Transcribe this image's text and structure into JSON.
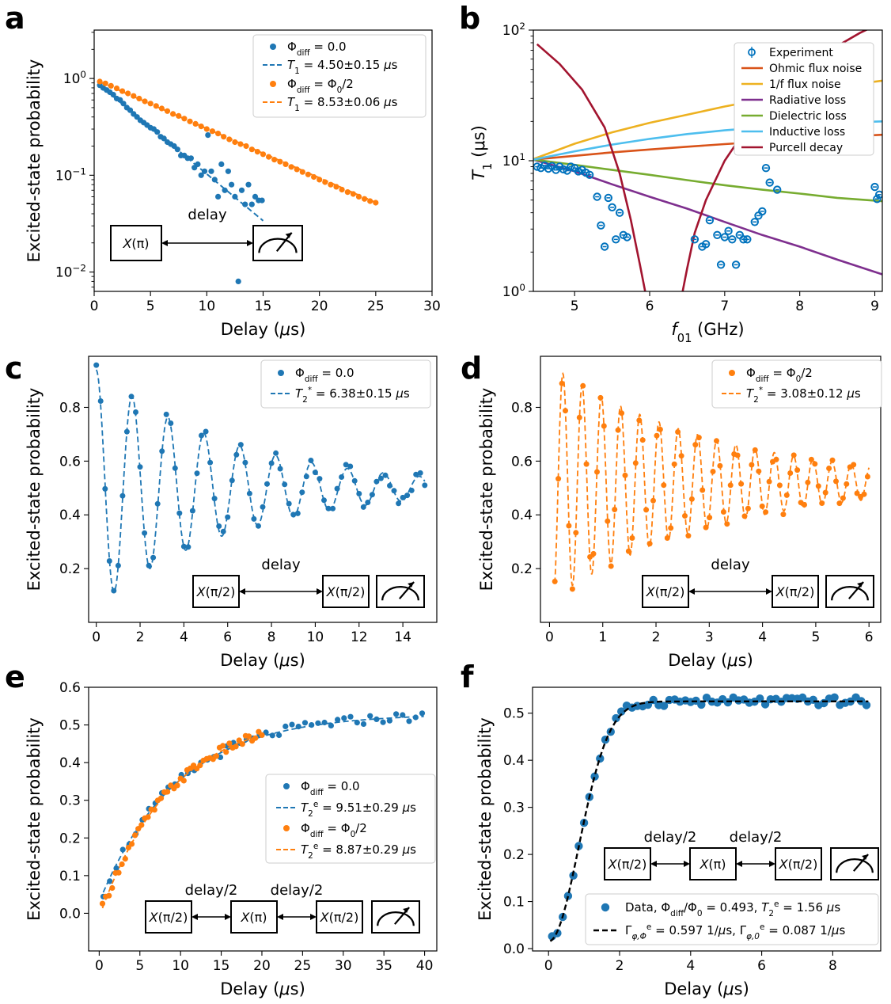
{
  "chart_data": [
    {
      "panel_letter": "a",
      "type": "scatter",
      "xlabel": "Delay (μs)",
      "ylabel": "Excited-state probability",
      "xlim": [
        0,
        30
      ],
      "ylim_log10": [
        -2.2,
        0.5
      ],
      "yscale": "log",
      "xticks": [
        0,
        5,
        10,
        15,
        20,
        25,
        30
      ],
      "yticks": [
        {
          "exp": 0,
          "label": "10",
          "sup": "0"
        },
        {
          "exp": -1,
          "label": "10",
          "sup": "−1"
        },
        {
          "exp": -2,
          "label": "10",
          "sup": "−2"
        }
      ],
      "legend": [
        "Φdiff = 0.0",
        "T1 = 4.50±0.15 μs",
        "Φdiff = Φ0/2",
        "T1 = 8.53±0.06 μs"
      ],
      "series": [
        {
          "kind": "points",
          "color": "#1f77b4",
          "x": [
            0.5,
            0.8,
            1.1,
            1.4,
            1.7,
            2.0,
            2.3,
            2.6,
            2.9,
            3.2,
            3.5,
            3.8,
            4.1,
            4.4,
            4.7,
            5.0,
            5.3,
            5.6,
            5.9,
            6.2,
            6.5,
            6.8,
            7.1,
            7.4,
            7.7,
            8.0,
            8.3,
            8.6,
            8.9,
            9.2,
            9.5,
            9.8,
            10.1,
            10.4,
            10.7,
            11.0,
            11.3,
            11.6,
            11.9,
            12.2,
            12.5,
            12.8,
            13.1,
            13.4,
            13.7,
            14.0,
            14.3,
            14.6,
            14.9
          ],
          "y": [
            0.85,
            0.8,
            0.76,
            0.72,
            0.68,
            0.62,
            0.6,
            0.55,
            0.5,
            0.47,
            0.43,
            0.4,
            0.37,
            0.35,
            0.33,
            0.31,
            0.3,
            0.28,
            0.25,
            0.24,
            0.22,
            0.21,
            0.2,
            0.185,
            0.16,
            0.16,
            0.15,
            0.15,
            0.12,
            0.13,
            0.1,
            0.11,
            0.26,
            0.11,
            0.09,
            0.06,
            0.13,
            0.07,
            0.11,
            0.08,
            0.06,
            0.008,
            0.07,
            0.05,
            0.08,
            0.05,
            0.06,
            0.055,
            0.055
          ]
        },
        {
          "kind": "fit",
          "color": "#1f77b4",
          "A": 0.95,
          "tau": 4.5,
          "x0": 0.5,
          "x1": 15
        },
        {
          "kind": "points",
          "color": "#ff7f0e",
          "x": [
            0.5,
            1.0,
            1.5,
            2.0,
            2.5,
            3.0,
            3.5,
            4.0,
            4.5,
            5.0,
            5.5,
            6.0,
            6.5,
            7.0,
            7.5,
            8.0,
            8.5,
            9.0,
            9.5,
            10.0,
            10.5,
            11.0,
            11.5,
            12.0,
            12.5,
            13.0,
            13.5,
            14.0,
            14.5,
            15.0,
            15.5,
            16.0,
            16.5,
            17.0,
            17.5,
            18.0,
            18.5,
            19.0,
            19.5,
            20.0,
            20.5,
            21.0,
            21.5,
            22.0,
            22.5,
            23.0,
            23.5,
            24.0,
            24.5,
            25.0
          ],
          "y": [
            0.93,
            0.89,
            0.84,
            0.79,
            0.74,
            0.7,
            0.66,
            0.62,
            0.58,
            0.55,
            0.52,
            0.49,
            0.46,
            0.43,
            0.41,
            0.385,
            0.36,
            0.34,
            0.32,
            0.3,
            0.285,
            0.27,
            0.25,
            0.235,
            0.22,
            0.21,
            0.2,
            0.185,
            0.175,
            0.165,
            0.155,
            0.145,
            0.138,
            0.13,
            0.122,
            0.115,
            0.108,
            0.102,
            0.096,
            0.09,
            0.085,
            0.08,
            0.076,
            0.071,
            0.067,
            0.064,
            0.06,
            0.057,
            0.054,
            0.052
          ]
        },
        {
          "kind": "fit",
          "color": "#ff7f0e",
          "A": 0.98,
          "tau": 8.53,
          "x0": 0.5,
          "x1": 25
        }
      ],
      "inset": {
        "pulses": [
          "X(π)"
        ],
        "gaps": [
          "delay"
        ]
      }
    },
    {
      "panel_letter": "b",
      "type": "line",
      "xlabel": "f01 (GHz)",
      "ylabel": "T1 (μs)",
      "xlim": [
        4.45,
        9.1
      ],
      "ylim": [
        1,
        100
      ],
      "yscale": "log",
      "xticks": [
        5,
        6,
        7,
        8,
        9
      ],
      "yticks": [
        {
          "exp": 0,
          "label": "10",
          "sup": "0"
        },
        {
          "exp": 1,
          "label": "10",
          "sup": "1"
        },
        {
          "exp": 2,
          "label": "10",
          "sup": "2"
        }
      ],
      "legend": [
        "Experiment",
        "Ohmic flux noise",
        "1/f flux noise",
        "Radiative loss",
        "Dielectric loss",
        "Inductive loss",
        "Purcell decay"
      ],
      "series": [
        {
          "name": "Ohmic flux noise",
          "color": "#d95319",
          "x": [
            4.45,
            5,
            5.5,
            6,
            6.5,
            7,
            7.5,
            8,
            8.5,
            9.1
          ],
          "y": [
            10.2,
            10.9,
            11.6,
            12.2,
            12.8,
            13.4,
            14,
            14.6,
            15.2,
            15.8
          ]
        },
        {
          "name": "1/f flux noise",
          "color": "#edb120",
          "x": [
            4.45,
            5,
            5.5,
            6,
            6.5,
            7,
            7.5,
            8,
            8.5,
            9.1
          ],
          "y": [
            10.3,
            13.5,
            16.5,
            19.5,
            22.5,
            26,
            29.5,
            33,
            37,
            41
          ]
        },
        {
          "name": "Radiative loss",
          "color": "#7e2f8e",
          "x": [
            4.45,
            5,
            5.5,
            6,
            6.5,
            7,
            7.5,
            8,
            8.5,
            9.1
          ],
          "y": [
            10.2,
            8.3,
            6.6,
            5.3,
            4.3,
            3.4,
            2.7,
            2.2,
            1.75,
            1.35
          ]
        },
        {
          "name": "Dielectric loss",
          "color": "#77ac30",
          "x": [
            4.45,
            5,
            5.5,
            6,
            6.5,
            7,
            7.5,
            8,
            8.5,
            9.1
          ],
          "y": [
            10.2,
            9.3,
            8.5,
            7.8,
            7.1,
            6.5,
            6,
            5.6,
            5.2,
            4.9
          ]
        },
        {
          "name": "Inductive loss",
          "color": "#4dbeee",
          "x": [
            4.45,
            5,
            5.5,
            6,
            6.5,
            7,
            7.5,
            8,
            8.5,
            9.1
          ],
          "y": [
            10.2,
            11.8,
            13.3,
            14.7,
            16,
            17.1,
            18,
            18.8,
            19.5,
            20
          ]
        },
        {
          "name": "Purcell decay",
          "color": "#a2142f",
          "x": [
            4.5,
            4.8,
            5.1,
            5.4,
            5.6,
            5.75,
            5.87,
            5.94
          ],
          "y": [
            78,
            55,
            35,
            18,
            8,
            3.5,
            1.6,
            1.0
          ]
        },
        {
          "name": "Purcell decay",
          "color": "#a2142f",
          "x": [
            6.44,
            6.5,
            6.6,
            6.75,
            7.0,
            7.3,
            7.6,
            8.0,
            8.4,
            8.8,
            9.1
          ],
          "y": [
            1.0,
            1.5,
            2.8,
            5,
            10,
            18,
            30,
            48,
            70,
            95,
            115
          ]
        },
        {
          "name": "Experiment",
          "color": "#0072bd",
          "kind": "points",
          "x": [
            4.5,
            4.55,
            4.6,
            4.65,
            4.7,
            4.75,
            4.8,
            4.85,
            4.9,
            4.95,
            5.0,
            5.05,
            5.1,
            5.15,
            5.2,
            5.3,
            5.35,
            5.4,
            5.45,
            5.5,
            5.55,
            5.6,
            5.65,
            5.7,
            6.6,
            6.7,
            6.75,
            6.8,
            6.9,
            6.95,
            7.0,
            7.05,
            7.1,
            7.15,
            7.2,
            7.25,
            7.3,
            7.4,
            7.45,
            7.5,
            7.55,
            7.6,
            7.7,
            9.0,
            9.03,
            9.06
          ],
          "y": [
            9,
            8.8,
            9.2,
            8.7,
            9.1,
            8.5,
            9,
            8.6,
            8.4,
            9,
            8.8,
            8.3,
            8.5,
            8.1,
            7.8,
            5.3,
            3.2,
            2.2,
            5.2,
            4.4,
            2.5,
            4,
            2.7,
            2.6,
            2.5,
            2.2,
            2.3,
            3.5,
            2.7,
            1.6,
            2.6,
            2.9,
            2.5,
            1.6,
            2.7,
            2.5,
            2.5,
            3.4,
            3.8,
            4.1,
            8.8,
            6.8,
            6,
            6.3,
            5.1,
            5.5
          ]
        }
      ]
    },
    {
      "panel_letter": "c",
      "type": "line",
      "xlabel": "Delay (μs)",
      "ylabel": "Excited-state probability",
      "xlim": [
        -0.35,
        15.55
      ],
      "ylim": [
        0.0,
        0.99
      ],
      "xticks": [
        0,
        2,
        4,
        6,
        8,
        10,
        12,
        14
      ],
      "yticks": [
        0.2,
        0.4,
        0.6,
        0.8
      ],
      "legend": [
        "Φdiff = 0.0",
        "T2* = 6.38±0.15 μs"
      ],
      "series": [
        {
          "kind": "ramsey",
          "color": "#1f77b4",
          "offset": 0.5,
          "amp": 0.44,
          "tau": 6.38,
          "freq": 0.61,
          "phase": 0.0,
          "x0": 0.0,
          "x1": 15.0,
          "dx": 0.2
        }
      ],
      "inset": {
        "pulses": [
          "X(π/2)",
          "X(π/2)"
        ],
        "gaps": [
          "delay"
        ]
      }
    },
    {
      "panel_letter": "d",
      "type": "line",
      "xlabel": "Delay (μs)",
      "ylabel": "Excited-state probability",
      "xlim": [
        -0.17,
        6.22
      ],
      "ylim": [
        0.0,
        0.99
      ],
      "xticks": [
        0,
        1,
        2,
        3,
        4,
        5,
        6
      ],
      "yticks": [
        0.2,
        0.4,
        0.6,
        0.8
      ],
      "legend": [
        "Φdiff = Φ0/2",
        "T2* = 3.08±0.12 μs"
      ],
      "series": [
        {
          "kind": "ramsey",
          "color": "#ff7f0e",
          "offset": 0.52,
          "amp": 0.44,
          "tau": 3.08,
          "freq": 2.77,
          "phase": 1.9,
          "x0": 0.1,
          "x1": 6.0,
          "dx": 0.066
        }
      ],
      "inset": {
        "pulses": [
          "X(π/2)",
          "X(π/2)"
        ],
        "gaps": [
          "delay"
        ]
      }
    },
    {
      "panel_letter": "e",
      "type": "scatter",
      "xlabel": "Delay (μs)",
      "ylabel": "Excited-state probability",
      "xlim": [
        -1.3,
        41.5
      ],
      "ylim": [
        -0.1,
        0.6
      ],
      "xticks": [
        0,
        5,
        10,
        15,
        20,
        25,
        30,
        35,
        40
      ],
      "yticks": [
        0.0,
        0.1,
        0.2,
        0.3,
        0.4,
        0.5,
        0.6
      ],
      "legend": [
        "Φdiff = 0.0",
        "T2e = 9.51±0.29 μs",
        "Φdiff = Φ0/2",
        "T2e = 8.87±0.29 μs"
      ],
      "series": [
        {
          "kind": "echo",
          "color": "#1f77b4",
          "offset": 0.53,
          "amp": 0.5,
          "tau": 9.51,
          "x0": 0.5,
          "x1": 40,
          "dx": 0.8
        },
        {
          "kind": "echo",
          "color": "#ff7f0e",
          "offset": 0.53,
          "amp": 0.54,
          "tau": 8.87,
          "x0": 0.4,
          "x1": 20,
          "dx": 0.4
        }
      ],
      "inset": {
        "pulses": [
          "X(π/2)",
          "X(π)",
          "X(π/2)"
        ],
        "gaps": [
          "delay/2",
          "delay/2"
        ]
      }
    },
    {
      "panel_letter": "f",
      "type": "scatter",
      "xlabel": "Delay (μs)",
      "ylabel": "Excited-state probability",
      "xlim": [
        -0.45,
        9.35
      ],
      "ylim": [
        -0.005,
        0.555
      ],
      "xticks": [
        0,
        2,
        4,
        6,
        8
      ],
      "yticks": [
        0.0,
        0.1,
        0.2,
        0.3,
        0.4,
        0.5
      ],
      "legend": [
        "Data, Φdiff/Φ0 = 0.493, T2e = 1.56 μs",
        "Γeφ,Φ = 0.597 1/μs, Γeφ,0 = 0.087 1/μs"
      ],
      "series": [
        {
          "kind": "gauss",
          "color": "#1f77b4",
          "offset": 0.525,
          "amp": 0.51,
          "sigma": 1.2,
          "x0": 0.1,
          "x1": 9.0,
          "dx": 0.15
        }
      ],
      "inset": {
        "pulses": [
          "X(π/2)",
          "X(π)",
          "X(π/2)"
        ],
        "gaps": [
          "delay/2",
          "delay/2"
        ]
      }
    }
  ]
}
